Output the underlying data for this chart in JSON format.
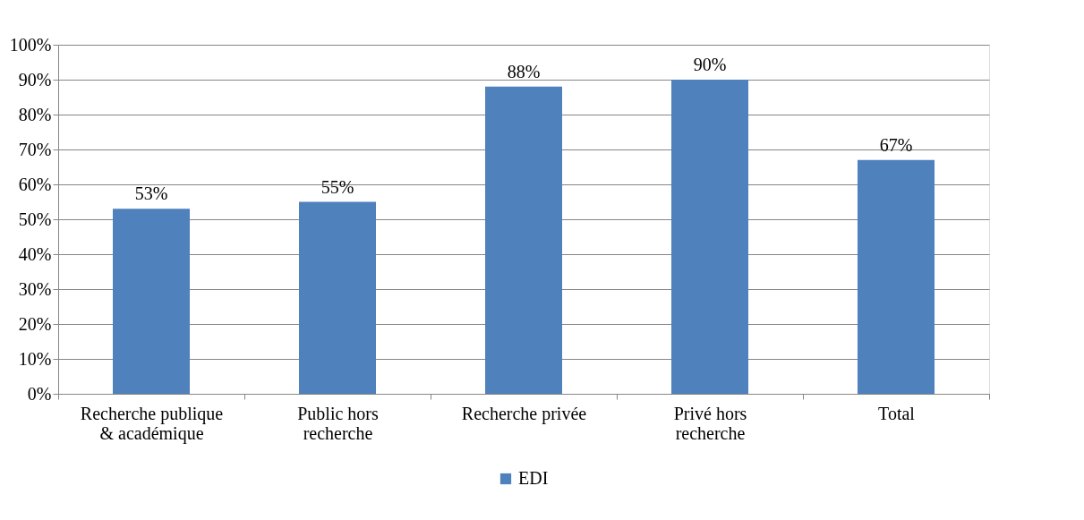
{
  "chart_data": {
    "type": "bar",
    "categories": [
      "Recherche publique\n& académique",
      "Public hors\nrecherche",
      "Recherche privée",
      "Privé hors\nrecherche",
      "Total"
    ],
    "series": [
      {
        "name": "EDI",
        "color": "#4f81bd",
        "values": [
          53,
          55,
          88,
          90,
          67
        ],
        "value_labels": [
          "53%",
          "55%",
          "88%",
          "90%",
          "67%"
        ]
      }
    ],
    "ylim": [
      0,
      100
    ],
    "yticks": [
      {
        "value": 0,
        "label": "0%"
      },
      {
        "value": 10,
        "label": "10%"
      },
      {
        "value": 20,
        "label": "20%"
      },
      {
        "value": 30,
        "label": "30%"
      },
      {
        "value": 40,
        "label": "40%"
      },
      {
        "value": 50,
        "label": "50%"
      },
      {
        "value": 60,
        "label": "60%"
      },
      {
        "value": 70,
        "label": "70%"
      },
      {
        "value": 80,
        "label": "80%"
      },
      {
        "value": 90,
        "label": "90%"
      },
      {
        "value": 100,
        "label": "100%"
      }
    ],
    "grid": "y",
    "legend": "bottom"
  }
}
